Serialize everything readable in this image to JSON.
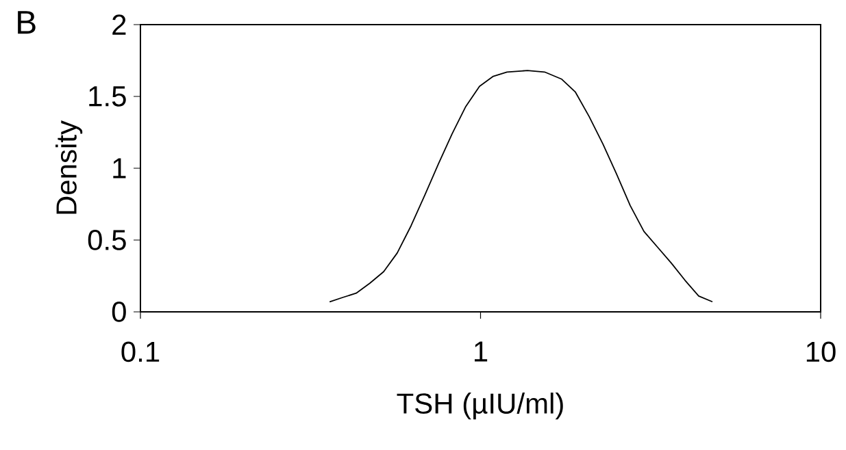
{
  "chart_data": {
    "type": "line",
    "title": "B",
    "xlabel": "TSH (µIU/ml)",
    "ylabel": "Density",
    "log": "x",
    "xlim": [
      0.1,
      10
    ],
    "xticks": [
      0.1,
      1,
      10
    ],
    "ylim": [
      0,
      2
    ],
    "yticks": [
      0,
      0.5,
      1,
      1.5,
      2
    ],
    "grid": false,
    "series": [
      {
        "color": "#000000",
        "x": [
          0.36,
          0.393,
          0.431,
          0.473,
          0.519,
          0.569,
          0.625,
          0.685,
          0.752,
          0.825,
          0.905,
          0.993,
          1.09,
          1.196,
          1.374,
          1.543,
          1.733,
          1.901,
          2.086,
          2.289,
          2.511,
          2.755,
          3.023,
          3.316,
          3.638,
          3.992,
          4.38,
          4.806
        ],
        "values": [
          0.07,
          0.1,
          0.13,
          0.2,
          0.28,
          0.41,
          0.6,
          0.81,
          1.03,
          1.24,
          1.43,
          1.57,
          1.64,
          1.67,
          1.68,
          1.67,
          1.62,
          1.53,
          1.36,
          1.17,
          0.96,
          0.74,
          0.56,
          0.45,
          0.34,
          0.22,
          0.11,
          0.07
        ]
      }
    ]
  }
}
